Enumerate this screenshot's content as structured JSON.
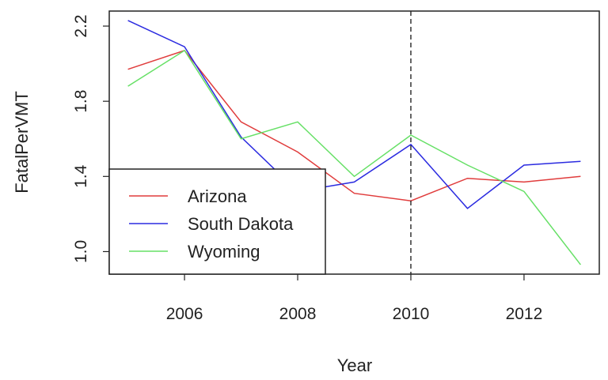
{
  "chart_data": {
    "type": "line",
    "title": "",
    "xlabel": "Year",
    "ylabel": "FatalPerVMT",
    "x": [
      2005,
      2006,
      2007,
      2008,
      2009,
      2010,
      2011,
      2012,
      2013
    ],
    "xlim": [
      2004.67,
      2013.33
    ],
    "ylim": [
      0.88,
      2.28
    ],
    "xticks": [
      2006,
      2008,
      2010,
      2012
    ],
    "yticks": [
      1.0,
      1.4,
      1.8,
      2.2
    ],
    "xtick_labels": [
      "2006",
      "2008",
      "2010",
      "2012"
    ],
    "ytick_labels": [
      "1.0",
      "1.4",
      "1.8",
      "2.2"
    ],
    "vline": {
      "x": 2010,
      "style": "dashed",
      "color": "#000000"
    },
    "grid": false,
    "legend_position": "bottom-left",
    "series": [
      {
        "name": "Arizona",
        "color": "#e03c3c",
        "values": [
          1.97,
          2.07,
          1.69,
          1.53,
          1.31,
          1.27,
          1.39,
          1.37,
          1.4
        ]
      },
      {
        "name": "South Dakota",
        "color": "#2b2be0",
        "values": [
          2.23,
          2.09,
          1.61,
          1.32,
          1.37,
          1.57,
          1.23,
          1.46,
          1.48
        ]
      },
      {
        "name": "Wyoming",
        "color": "#66e066",
        "values": [
          1.88,
          2.07,
          1.6,
          1.69,
          1.4,
          1.62,
          1.46,
          1.32,
          0.93
        ]
      }
    ]
  }
}
